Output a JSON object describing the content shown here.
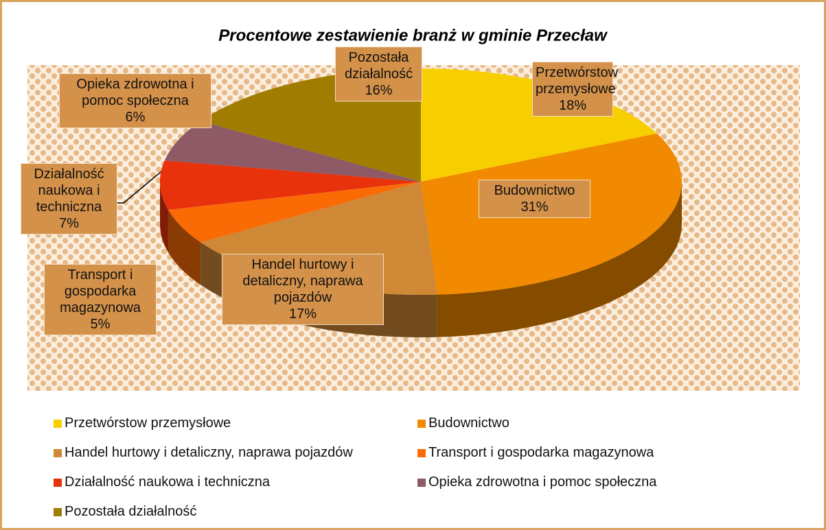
{
  "chart_data": {
    "type": "pie",
    "title": "Procentowe zestawienie branż w gminie Przecław",
    "categories": [
      "Przetwórstow przemysłowe",
      "Budownictwo",
      "Handel hurtowy i detaliczny, naprawa pojazdów",
      "Transport i gospodarka magazynowa",
      "Działalność naukowa i techniczna",
      "Opieka zdrowotna i pomoc społeczna",
      "Pozostała działalność"
    ],
    "values": [
      18,
      31,
      17,
      5,
      7,
      6,
      16
    ],
    "value_labels": [
      "18%",
      "31%",
      "17%",
      "5%",
      "7%",
      "6%",
      "16%"
    ],
    "colors": [
      "#f7cf00",
      "#f18a00",
      "#cf8836",
      "#fa6a05",
      "#e8320c",
      "#8d5a66",
      "#a07d00"
    ],
    "legend": "bottom"
  }
}
